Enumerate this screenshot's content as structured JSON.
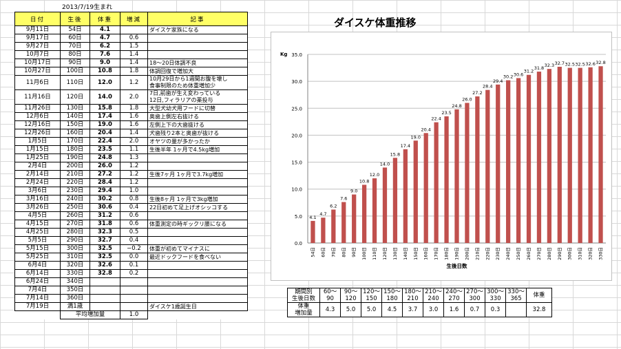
{
  "birth": "2013/7/19生まれ",
  "headers": {
    "date": "日付",
    "age": "生後",
    "weight": "体重",
    "change": "増減",
    "memo": "記事"
  },
  "rows": [
    {
      "date": "9月11日",
      "age": "54日",
      "weight": "4.1",
      "change": "",
      "memo": "ダイスケ家族になる"
    },
    {
      "date": "9月17日",
      "age": "60日",
      "weight": "4.7",
      "change": "0.6",
      "memo": ""
    },
    {
      "date": "9月27日",
      "age": "70日",
      "weight": "6.2",
      "change": "1.5",
      "memo": ""
    },
    {
      "date": "10月7日",
      "age": "80日",
      "weight": "7.6",
      "change": "1.4",
      "memo": ""
    },
    {
      "date": "10月17日",
      "age": "90日",
      "weight": "9.0",
      "change": "1.4",
      "memo": "18～20日体調不良"
    },
    {
      "date": "10月27日",
      "age": "100日",
      "weight": "10.8",
      "change": "1.8",
      "memo": "体調回復で増加大"
    },
    {
      "date": "11月6日",
      "age": "110日",
      "weight": "12.0",
      "change": "1.2",
      "memo": "10月29日から1週間お腹を壊し\n食事制限のため体重増加少"
    },
    {
      "date": "11月16日",
      "age": "120日",
      "weight": "14.0",
      "change": "2.0",
      "memo": "7日,前歯が生え変わっている\n12日,フィラリアの薬投与"
    },
    {
      "date": "11月26日",
      "age": "130日",
      "weight": "15.8",
      "change": "1.8",
      "memo": "大型犬幼犬用フードに切替"
    },
    {
      "date": "12月6日",
      "age": "140日",
      "weight": "17.4",
      "change": "1.6",
      "memo": "奥歯上側左右抜ける"
    },
    {
      "date": "12月16日",
      "age": "150日",
      "weight": "19.0",
      "change": "1.6",
      "memo": "左側上下の大歯抜ける"
    },
    {
      "date": "12月26日",
      "age": "160日",
      "weight": "20.4",
      "change": "1.4",
      "memo": "犬歯残り2本と奥歯が抜ける"
    },
    {
      "date": "1月5日",
      "age": "170日",
      "weight": "22.4",
      "change": "2.0",
      "memo": "オヤツの量が多かったか"
    },
    {
      "date": "1月15日",
      "age": "180日",
      "weight": "23.5",
      "change": "1.1",
      "memo": "生後半年 1ヶ月で4.5kg増加"
    },
    {
      "date": "1月25日",
      "age": "190日",
      "weight": "24.8",
      "change": "1.3",
      "memo": ""
    },
    {
      "date": "2月4日",
      "age": "200日",
      "weight": "26.0",
      "change": "1.2",
      "memo": ""
    },
    {
      "date": "2月14日",
      "age": "210日",
      "weight": "27.2",
      "change": "1.2",
      "memo": "生後7ヶ月 1ヶ月で3.7kg増加"
    },
    {
      "date": "2月24日",
      "age": "220日",
      "weight": "28.4",
      "change": "1.2",
      "memo": ""
    },
    {
      "date": "3月6日",
      "age": "230日",
      "weight": "29.4",
      "change": "1.0",
      "memo": ""
    },
    {
      "date": "3月16日",
      "age": "240日",
      "weight": "30.2",
      "change": "0.8",
      "memo": "生後8ヶ月 1ヶ月で3kg増加"
    },
    {
      "date": "3月26日",
      "age": "250日",
      "weight": "30.6",
      "change": "0.4",
      "memo": "22日初めて足上げオシッコする"
    },
    {
      "date": "4月5日",
      "age": "260日",
      "weight": "31.2",
      "change": "0.6",
      "memo": ""
    },
    {
      "date": "4月15日",
      "age": "270日",
      "weight": "31.8",
      "change": "0.6",
      "memo": "体重測定の時ギックリ腰になる"
    },
    {
      "date": "4月25日",
      "age": "280日",
      "weight": "32.3",
      "change": "0.5",
      "memo": ""
    },
    {
      "date": "5月5日",
      "age": "290日",
      "weight": "32.7",
      "change": "0.4",
      "memo": ""
    },
    {
      "date": "5月15日",
      "age": "300日",
      "weight": "32.5",
      "change": "−0.2",
      "memo": "体重が初めてマイナスに"
    },
    {
      "date": "5月25日",
      "age": "310日",
      "weight": "32.5",
      "change": "0.0",
      "memo": "最近ドックフードを食べない"
    },
    {
      "date": "6月4日",
      "age": "320日",
      "weight": "32.6",
      "change": "0.1",
      "memo": ""
    },
    {
      "date": "6月14日",
      "age": "330日",
      "weight": "32.8",
      "change": "0.2",
      "memo": ""
    },
    {
      "date": "6月24日",
      "age": "340日",
      "weight": "",
      "change": "",
      "memo": ""
    },
    {
      "date": "7月4日",
      "age": "350日",
      "weight": "",
      "change": "",
      "memo": ""
    },
    {
      "date": "7月14日",
      "age": "360日",
      "weight": "",
      "change": "",
      "memo": ""
    },
    {
      "date": "7月19日",
      "age": "満1歳",
      "weight": "",
      "change": "",
      "memo": "ダイスケ1歳誕生日"
    }
  ],
  "average": {
    "label": "平均増加量",
    "value": "1.0"
  },
  "summary": {
    "label_period": [
      "期間別",
      "生後日数"
    ],
    "periods": [
      {
        "range": [
          "60～",
          "90"
        ],
        "value": "4.3"
      },
      {
        "range": [
          "90～",
          "120"
        ],
        "value": "5.0"
      },
      {
        "range": [
          "120～",
          "150"
        ],
        "value": "5.0"
      },
      {
        "range": [
          "150～",
          "180"
        ],
        "value": "4.5"
      },
      {
        "range": [
          "180～",
          "210"
        ],
        "value": "3.7"
      },
      {
        "range": [
          "210～",
          "240"
        ],
        "value": "3.0"
      },
      {
        "range": [
          "240～",
          "270"
        ],
        "value": "1.6"
      },
      {
        "range": [
          "270～",
          "300"
        ],
        "value": "0.7"
      },
      {
        "range": [
          "300～",
          "330"
        ],
        "value": "0.3"
      },
      {
        "range": [
          "330～",
          "365"
        ],
        "value": ""
      }
    ],
    "label_gain": [
      "体重",
      "増加量"
    ],
    "weight_label": "体重",
    "weight_value": "32.8"
  },
  "chart_data": {
    "type": "bar",
    "title": "ダイスケ体重推移",
    "ylabel": "Kg",
    "xlabel": "生後日数",
    "ylim": [
      0,
      35
    ],
    "yticks": [
      "0.0",
      "5.0",
      "10.0",
      "15.0",
      "20.0",
      "25.0",
      "30.0",
      "35.0"
    ],
    "grid": true,
    "bar_color": "#c0504d",
    "categories": [
      "54日",
      "60日",
      "70日",
      "80日",
      "90日",
      "100日",
      "110日",
      "120日",
      "130日",
      "140日",
      "150日",
      "160日",
      "170日",
      "180日",
      "190日",
      "200日",
      "210日",
      "220日",
      "230日",
      "240日",
      "250日",
      "260日",
      "270日",
      "280日",
      "290日",
      "300日",
      "310日",
      "320日",
      "330日"
    ],
    "values": [
      4.1,
      4.7,
      6.2,
      7.6,
      9.0,
      10.8,
      12.0,
      14.0,
      15.8,
      17.4,
      19.0,
      20.4,
      22.4,
      23.5,
      24.8,
      26.0,
      27.2,
      28.4,
      29.4,
      30.2,
      30.6,
      31.2,
      31.8,
      32.3,
      32.7,
      32.5,
      32.5,
      32.6,
      32.8
    ]
  }
}
